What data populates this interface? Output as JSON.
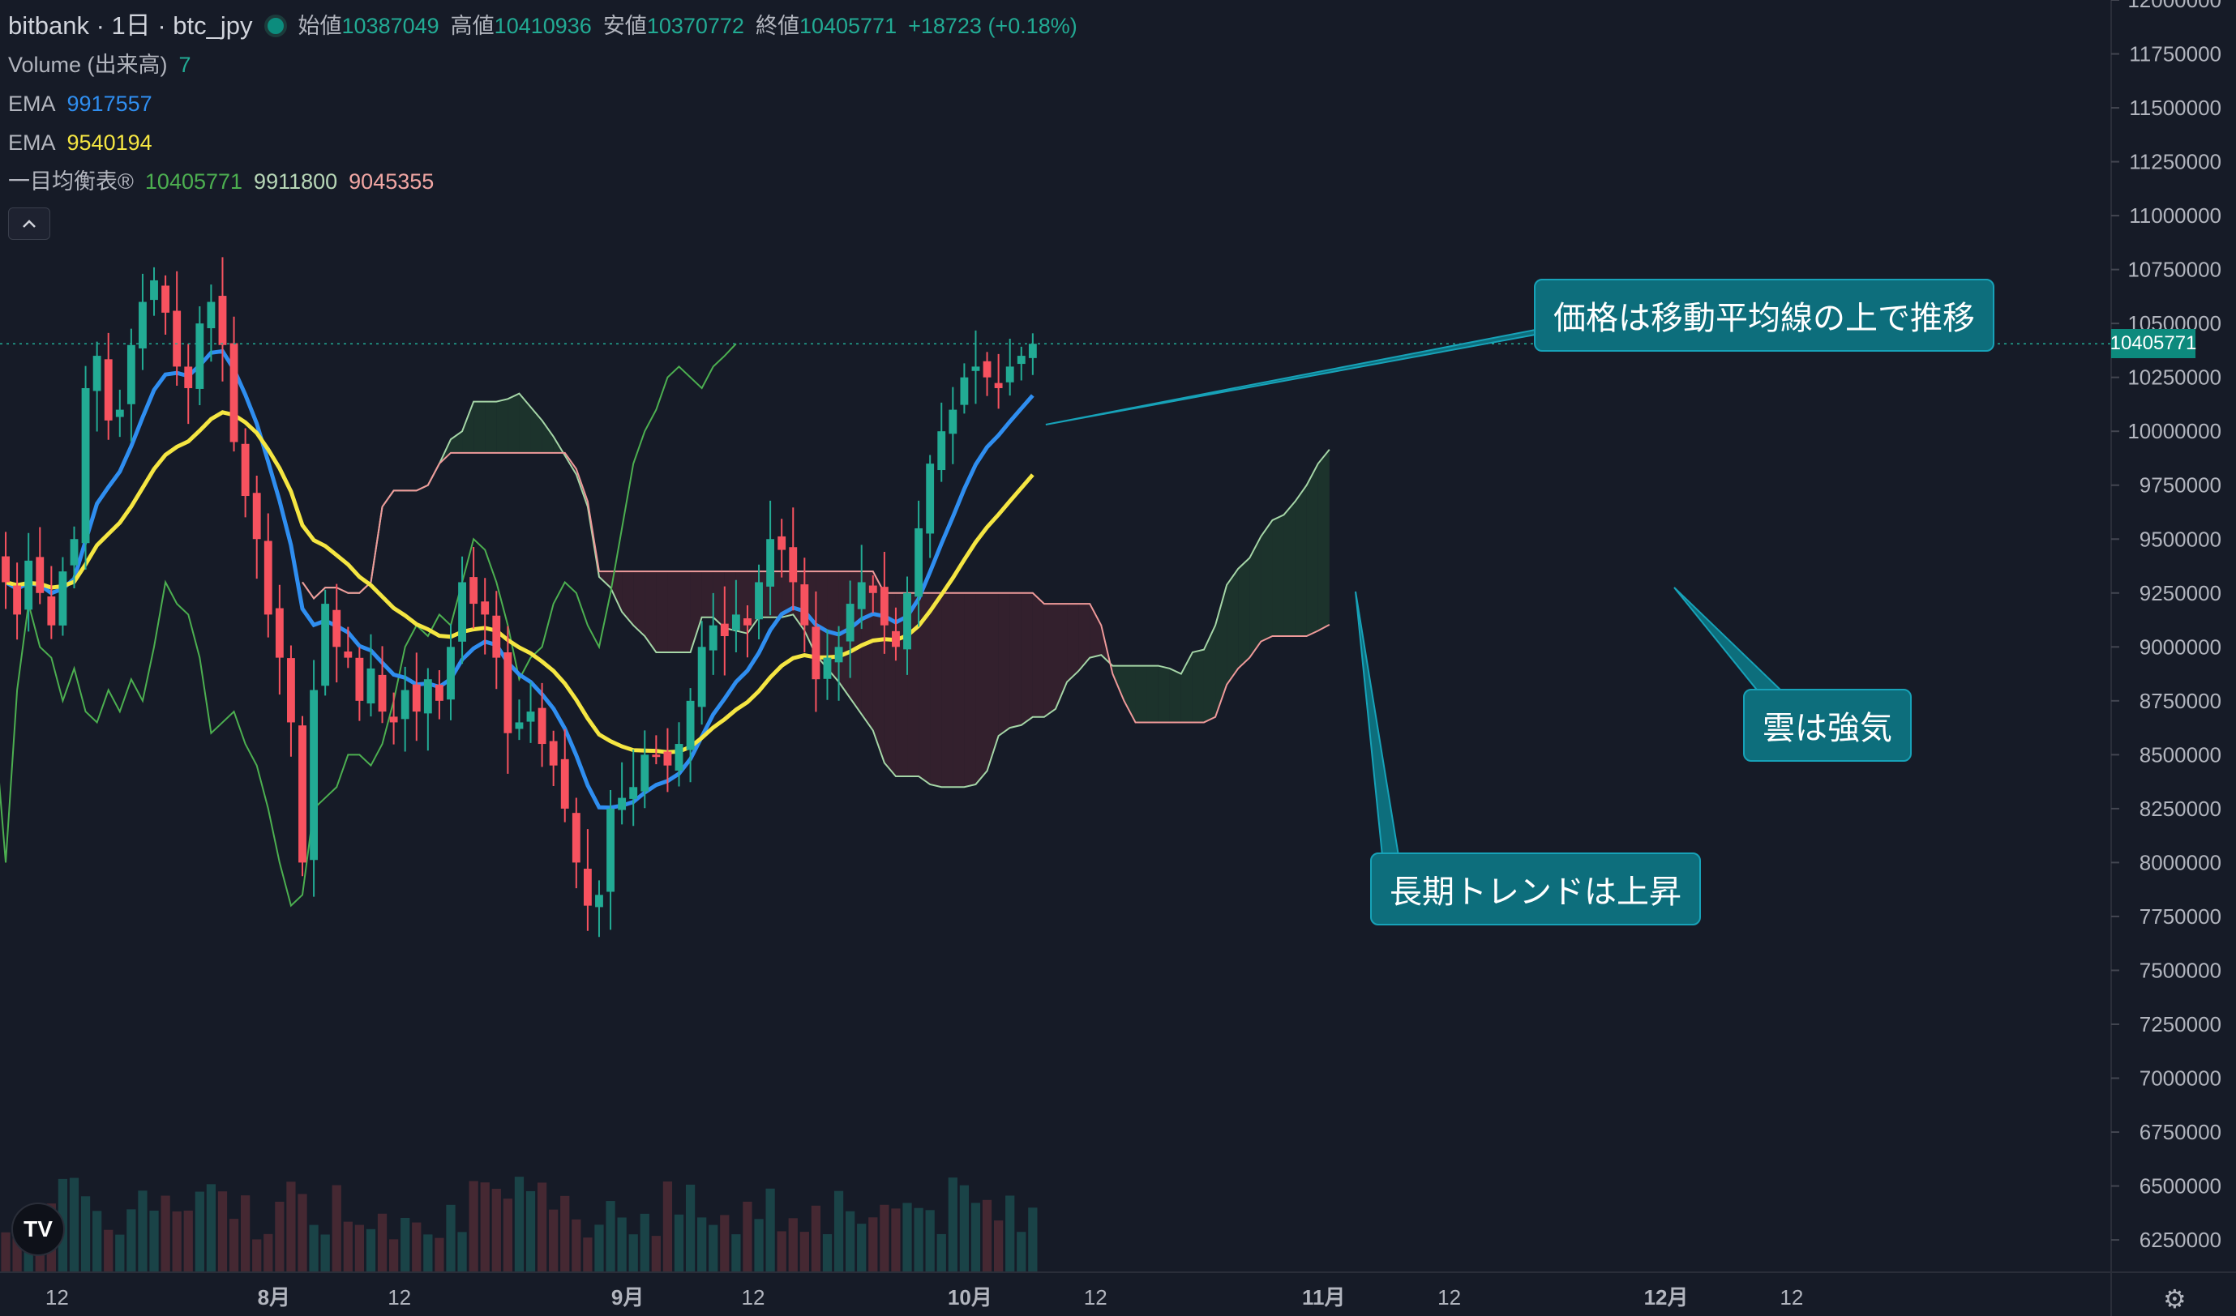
{
  "header": {
    "title": "bitbank · 1日 · btc_jpy",
    "ohlc": {
      "open_label": "始値",
      "open": "10387049",
      "high_label": "高値",
      "high": "10410936",
      "low_label": "安値",
      "low": "10370772",
      "close_label": "終値",
      "close": "10405771",
      "change": "+18723 (+0.18%)"
    }
  },
  "indicators": {
    "volume_label": "Volume (出来高)",
    "volume_value": "7",
    "ema1_label": "EMA",
    "ema1_value": "9917557",
    "ema2_label": "EMA",
    "ema2_value": "9540194",
    "ichimoku_label": "一目均衡表®",
    "ichimoku_v1": "10405771",
    "ichimoku_v2": "9911800",
    "ichimoku_v3": "9045355",
    "collapse_icon": "chevron-up-icon"
  },
  "callouts": {
    "price_above_ma": "価格は移動平均線の上で推移",
    "cloud_bullish": "雲は強気",
    "long_trend_up": "長期トレンドは上昇"
  },
  "last_price_tag": "10405771",
  "colors": {
    "background": "#161b27",
    "bull": "#22ab94",
    "bear": "#f7525f",
    "ema_fast": "#2f8ef0",
    "ema_slow": "#f5e642",
    "cloud_bull": "#1e3a2e",
    "cloud_bear": "#3b2230",
    "callout": "#0d6e7c"
  },
  "chart_data": {
    "type": "candlestick",
    "y_axis": {
      "ticks": [
        6250000,
        6500000,
        6750000,
        7000000,
        7250000,
        7500000,
        7750000,
        8000000,
        8250000,
        8500000,
        8750000,
        9000000,
        9250000,
        9500000,
        9750000,
        10000000,
        10250000,
        10500000,
        10750000,
        11000000,
        11250000,
        11500000,
        11750000,
        12000000
      ],
      "tick_labels": [
        "6250000",
        "6500000",
        "6750000",
        "7000000",
        "7250000",
        "7500000",
        "7750000",
        "8000000",
        "8250000",
        "8500000",
        "8750000",
        "9000000",
        "9250000",
        "9500000",
        "9750000",
        "10000000",
        "10250000",
        "10500000",
        "10750000",
        "11000000",
        "11250000",
        "11500000",
        "11750000",
        "12000000"
      ],
      "range": [
        6100000,
        12000000
      ]
    },
    "x_axis": {
      "labels": [
        "12",
        "8月",
        "12",
        "9月",
        "12",
        "10月",
        "12",
        "11月",
        "12",
        "12月",
        "12"
      ],
      "label_days": [
        -19,
        0,
        11,
        31,
        42,
        61,
        72,
        92,
        103,
        122,
        133
      ],
      "range_days": [
        -24,
        161
      ]
    },
    "candles_visible": "from mid-July to late October, daily",
    "closes": [
      9300000,
      9150000,
      9400000,
      9250000,
      9100000,
      9350000,
      9500000,
      10200000,
      10350000,
      10050000,
      10100000,
      10400000,
      10600000,
      10700000,
      10550000,
      10300000,
      10200000,
      10500000,
      10600000,
      10400000,
      9950000,
      9700000,
      9500000,
      9150000,
      8950000,
      8650000,
      8000000,
      8800000,
      9200000,
      9000000,
      8950000,
      8750000,
      8900000,
      8700000,
      8650000,
      8800000,
      8700000,
      8850000,
      8750000,
      9000000,
      9300000,
      9200000,
      9150000,
      8950000,
      8600000,
      8650000,
      8700000,
      8550000,
      8450000,
      8250000,
      8000000,
      7800000,
      7850000,
      8250000,
      8300000,
      8350000,
      8500000,
      8500000,
      8450000,
      8550000,
      8750000,
      9000000,
      9100000,
      9050000,
      9150000,
      9100000,
      9300000,
      9500000,
      9450000,
      9300000,
      9100000,
      8850000,
      8950000,
      9000000,
      9200000,
      9300000,
      9250000,
      9100000,
      9000000,
      9250000,
      9550000,
      9850000,
      10000000,
      10100000,
      10250000,
      10300000,
      10250000,
      10200000,
      10300000,
      10350000,
      10405771
    ],
    "ema_fast_last": 9917557,
    "ema_slow_last": 9540194,
    "last_price": 10405771
  }
}
